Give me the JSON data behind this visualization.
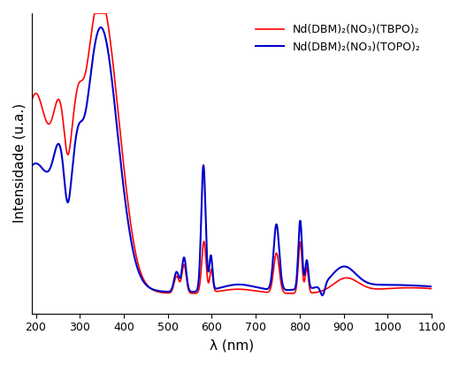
{
  "xlim": [
    190,
    1100
  ],
  "ylim": [
    0,
    1.05
  ],
  "xlabel": "λ (nm)",
  "ylabel": "Intensidade (u.a.)",
  "xticks": [
    200,
    300,
    400,
    500,
    600,
    700,
    800,
    900,
    1000,
    1100
  ],
  "legend1": "Nd(DBM)₂(NO₃)(TBPO)₂",
  "legend2": "Nd(DBM)₂(NO₃)(TOPO)₂",
  "color_red": "#ff0000",
  "color_blue": "#0000cc",
  "background": "#ffffff",
  "figsize": [
    5.19,
    4.13
  ],
  "dpi": 100
}
